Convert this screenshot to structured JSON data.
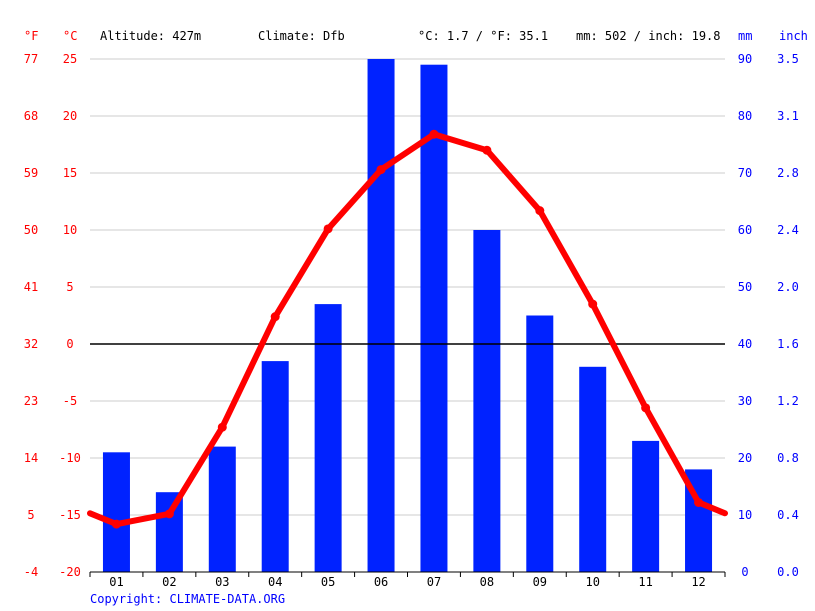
{
  "header": {
    "unit_f": "°F",
    "unit_c": "°C",
    "altitude": "Altitude: 427m",
    "climate": "Climate: Dfb",
    "temp_avg": "°C: 1.7 / °F: 35.1",
    "precip_total": "mm: 502 / inch: 19.8",
    "unit_mm": "mm",
    "unit_inch": "inch"
  },
  "footer": {
    "copyright": "Copyright: CLIMATE-DATA.ORG"
  },
  "colors": {
    "temperature": "#ff0000",
    "precipitation": "#0022ff",
    "zero_line": "#000000",
    "grid": "#bbbbbb"
  },
  "chart_data": {
    "type": "bar+line",
    "categories": [
      "01",
      "02",
      "03",
      "04",
      "05",
      "06",
      "07",
      "08",
      "09",
      "10",
      "11",
      "12"
    ],
    "series": [
      {
        "type": "bar",
        "axis": "right",
        "values": [
          21,
          14,
          22,
          37,
          47,
          90,
          89,
          60,
          45,
          36,
          23,
          18
        ]
      },
      {
        "type": "line",
        "axis": "left",
        "values": [
          -15.8,
          -14.9,
          -7.3,
          2.4,
          10.1,
          15.3,
          18.4,
          17.0,
          11.7,
          3.5,
          -5.6,
          -13.9
        ]
      }
    ],
    "y_left": {
      "unit": "°C",
      "range": [
        -20,
        25
      ],
      "ticks": [
        "-20",
        "-15",
        "-10",
        "-5",
        "0",
        "5",
        "10",
        "15",
        "20",
        "25"
      ]
    },
    "y_far_left": {
      "unit": "°F",
      "ticks": [
        "-4",
        "5",
        "14",
        "23",
        "32",
        "41",
        "50",
        "59",
        "68",
        "77"
      ]
    },
    "y_right": {
      "unit": "mm",
      "range": [
        0,
        90
      ],
      "ticks": [
        "0",
        "10",
        "20",
        "30",
        "40",
        "50",
        "60",
        "70",
        "80",
        "90"
      ]
    },
    "y_far_right": {
      "unit": "inch",
      "ticks": [
        "0.0",
        "0.4",
        "0.8",
        "1.2",
        "1.6",
        "2.0",
        "2.4",
        "2.8",
        "3.1",
        "3.5"
      ]
    },
    "grid": true
  }
}
